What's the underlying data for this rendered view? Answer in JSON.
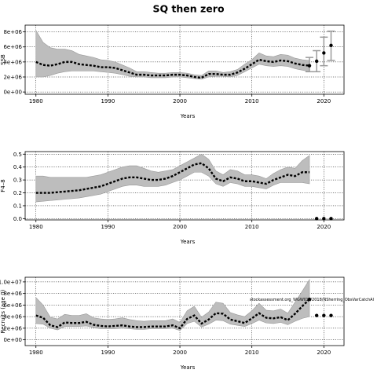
{
  "title": "SQ then zero",
  "chart_data": [
    {
      "type": "line",
      "xlabel": "Years",
      "ylabel": "SSB",
      "xlim": [
        1978.5,
        2022.8
      ],
      "ylim": [
        -300000,
        8900000
      ],
      "xticks": [
        1980,
        1990,
        2000,
        2010,
        2020
      ],
      "yticks": [
        0,
        2000000,
        4000000,
        6000000,
        8000000
      ],
      "ytick_labels": [
        "0e+00",
        "2e+06",
        "4e+06",
        "6e+06",
        "8e+06"
      ],
      "grid": true,
      "series": [
        {
          "x": [
            1980,
            1981,
            1982,
            1983,
            1984,
            1985,
            1986,
            1987,
            1988,
            1989,
            1990,
            1991,
            1992,
            1993,
            1994,
            1995,
            1996,
            1997,
            1998,
            1999,
            2000,
            2001,
            2002,
            2003,
            2004,
            2005,
            2006,
            2007,
            2008,
            2009,
            2010,
            2011,
            2012,
            2013,
            2014,
            2015,
            2016,
            2017,
            2018
          ],
          "values": [
            4000000,
            3600000,
            3500000,
            3700000,
            4000000,
            4000000,
            3700000,
            3600000,
            3500000,
            3300000,
            3300000,
            3200000,
            2900000,
            2600000,
            2300000,
            2300000,
            2200000,
            2200000,
            2200000,
            2300000,
            2300000,
            2200000,
            2000000,
            1900000,
            2400000,
            2400000,
            2300000,
            2300000,
            2600000,
            3100000,
            3700000,
            4300000,
            4100000,
            4000000,
            4200000,
            4100000,
            3800000,
            3600000,
            3500000
          ],
          "lower": [
            2000000,
            2000000,
            2200000,
            2500000,
            2700000,
            2800000,
            2800000,
            2800000,
            2800000,
            2700000,
            2600000,
            2500000,
            2300000,
            2100000,
            2000000,
            2000000,
            1900000,
            1900000,
            1900000,
            2000000,
            2000000,
            1900000,
            1800000,
            1700000,
            2000000,
            2100000,
            2100000,
            2000000,
            2200000,
            2700000,
            3200000,
            3700000,
            3500000,
            3400000,
            3500000,
            3400000,
            3100000,
            2900000,
            2700000
          ],
          "upper": [
            8200000,
            6600000,
            5900000,
            5700000,
            5700000,
            5500000,
            5000000,
            4800000,
            4600000,
            4300000,
            4200000,
            4000000,
            3600000,
            3200000,
            2700000,
            2700000,
            2600000,
            2500000,
            2500000,
            2600000,
            2600000,
            2500000,
            2300000,
            2200000,
            2800000,
            2800000,
            2600000,
            2700000,
            3000000,
            3700000,
            4300000,
            5200000,
            4800000,
            4700000,
            5000000,
            4900000,
            4500000,
            4300000,
            4200000
          ]
        }
      ],
      "projection": {
        "x": [
          2018,
          2019,
          2020,
          2021
        ],
        "values": [
          3500000,
          4100000,
          5200000,
          6200000
        ],
        "lower": [
          2700000,
          2700000,
          3500000,
          4200000
        ],
        "upper": [
          4600000,
          5500000,
          7300000,
          8100000
        ]
      }
    },
    {
      "type": "line",
      "xlabel": "Years",
      "ylabel": "F4–8",
      "xlim": [
        1978.5,
        2022.8
      ],
      "ylim": [
        -0.01,
        0.52
      ],
      "xticks": [
        1980,
        1990,
        2000,
        2010,
        2020
      ],
      "yticks": [
        0.0,
        0.1,
        0.2,
        0.3,
        0.4,
        0.5
      ],
      "ytick_labels": [
        "0.0",
        "0.1",
        "0.2",
        "0.3",
        "0.4",
        "0.5"
      ],
      "grid": true,
      "series": [
        {
          "x": [
            1980,
            1981,
            1982,
            1983,
            1984,
            1985,
            1986,
            1987,
            1988,
            1989,
            1990,
            1991,
            1992,
            1993,
            1994,
            1995,
            1996,
            1997,
            1998,
            1999,
            2000,
            2001,
            2002,
            2003,
            2004,
            2005,
            2006,
            2007,
            2008,
            2009,
            2010,
            2011,
            2012,
            2013,
            2014,
            2015,
            2016,
            2017,
            2018
          ],
          "values": [
            0.2,
            0.2,
            0.2,
            0.205,
            0.21,
            0.215,
            0.22,
            0.23,
            0.24,
            0.25,
            0.27,
            0.29,
            0.31,
            0.32,
            0.32,
            0.31,
            0.3,
            0.3,
            0.31,
            0.33,
            0.36,
            0.39,
            0.42,
            0.43,
            0.39,
            0.31,
            0.29,
            0.32,
            0.31,
            0.29,
            0.29,
            0.28,
            0.27,
            0.3,
            0.32,
            0.34,
            0.33,
            0.36,
            0.36
          ],
          "lower": [
            0.13,
            0.135,
            0.14,
            0.145,
            0.15,
            0.155,
            0.16,
            0.17,
            0.18,
            0.19,
            0.21,
            0.23,
            0.25,
            0.26,
            0.26,
            0.25,
            0.25,
            0.25,
            0.26,
            0.28,
            0.3,
            0.33,
            0.36,
            0.36,
            0.33,
            0.27,
            0.25,
            0.28,
            0.27,
            0.25,
            0.25,
            0.24,
            0.23,
            0.26,
            0.28,
            0.28,
            0.28,
            0.28,
            0.27
          ],
          "upper": [
            0.33,
            0.33,
            0.32,
            0.32,
            0.32,
            0.32,
            0.32,
            0.32,
            0.33,
            0.34,
            0.36,
            0.38,
            0.4,
            0.41,
            0.41,
            0.39,
            0.37,
            0.36,
            0.37,
            0.38,
            0.41,
            0.44,
            0.47,
            0.5,
            0.46,
            0.37,
            0.34,
            0.38,
            0.37,
            0.34,
            0.34,
            0.33,
            0.31,
            0.35,
            0.38,
            0.4,
            0.39,
            0.45,
            0.49
          ]
        }
      ],
      "projection": {
        "x": [
          2019,
          2020,
          2021
        ],
        "values": [
          0.0,
          0.0,
          0.0
        ]
      }
    },
    {
      "type": "line",
      "xlabel": "Years",
      "ylabel": "Recruits (age 0)",
      "xlim": [
        1978.5,
        2022.8
      ],
      "ylim": [
        -1000000,
        10800000
      ],
      "xticks": [
        1980,
        1990,
        2000,
        2010,
        2020
      ],
      "yticks": [
        0,
        2000000,
        4000000,
        6000000,
        8000000,
        10000000
      ],
      "ytick_labels": [
        "0e+00",
        "2e+06",
        "4e+06",
        "6e+06",
        "8e+06",
        "1.0e+07"
      ],
      "grid": true,
      "annotation": "stockassessment.org_WGWIDE/2018/NSherring_ObsVarCatchAl",
      "series": [
        {
          "x": [
            1980,
            1981,
            1982,
            1983,
            1984,
            1985,
            1986,
            1987,
            1988,
            1989,
            1990,
            1991,
            1992,
            1993,
            1994,
            1995,
            1996,
            1997,
            1998,
            1999,
            2000,
            2001,
            2002,
            2003,
            2004,
            2005,
            2006,
            2007,
            2008,
            2009,
            2010,
            2011,
            2012,
            2013,
            2014,
            2015,
            2016,
            2017,
            2018
          ],
          "values": [
            4200000,
            3800000,
            2500000,
            2200000,
            3000000,
            2900000,
            2900000,
            3100000,
            2600000,
            2400000,
            2300000,
            2400000,
            2500000,
            2300000,
            2200000,
            2200000,
            2300000,
            2300000,
            2300000,
            2500000,
            2000000,
            3600000,
            4200000,
            2800000,
            3500000,
            4600000,
            4500000,
            3500000,
            3200000,
            2900000,
            3700000,
            4600000,
            3800000,
            3700000,
            3900000,
            3400000,
            4500000,
            5800000,
            7000000
          ],
          "lower": [
            2800000,
            2700000,
            2000000,
            1700000,
            2300000,
            2300000,
            2300000,
            2400000,
            2100000,
            1900000,
            1900000,
            1900000,
            2000000,
            1900000,
            1800000,
            1800000,
            1900000,
            1900000,
            1900000,
            2000000,
            1600000,
            2800000,
            3200000,
            2200000,
            2700000,
            3400000,
            3300000,
            2700000,
            2500000,
            2300000,
            2800000,
            3400000,
            2900000,
            2800000,
            3000000,
            2600000,
            3200000,
            3700000,
            4000000
          ],
          "upper": [
            7300000,
            6000000,
            3900000,
            3600000,
            4400000,
            4200000,
            4200000,
            4500000,
            3800000,
            3600000,
            3500000,
            3600000,
            3800000,
            3500000,
            3300000,
            3200000,
            3300000,
            3300000,
            3300000,
            3600000,
            3000000,
            5000000,
            5800000,
            3900000,
            4800000,
            6500000,
            6300000,
            4700000,
            4300000,
            4000000,
            5000000,
            6300000,
            5100000,
            5000000,
            5300000,
            4600000,
            6500000,
            8400000,
            10400000
          ]
        }
      ],
      "projection": {
        "x": [
          2018,
          2019,
          2020,
          2021
        ],
        "values": [
          7000000,
          4200000,
          4200000,
          4200000
        ]
      }
    }
  ]
}
